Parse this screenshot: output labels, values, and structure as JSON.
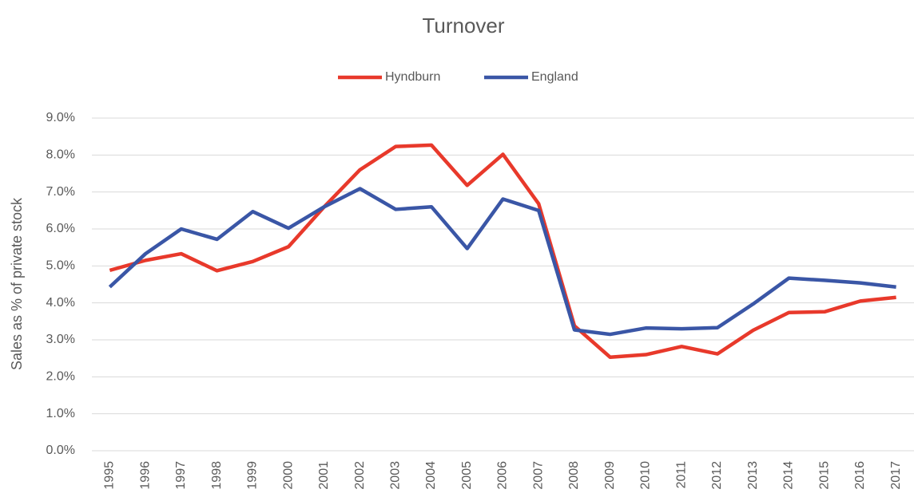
{
  "chart_data": {
    "type": "line",
    "title": "Turnover",
    "y_label": "Sales as % of private stock",
    "categories": [
      "1995",
      "1996",
      "1997",
      "1998",
      "1999",
      "2000",
      "2001",
      "2002",
      "2003",
      "2004",
      "2005",
      "2006",
      "2007",
      "2008",
      "2009",
      "2010",
      "2011",
      "2012",
      "2013",
      "2014",
      "2015",
      "2016",
      "2017"
    ],
    "series": [
      {
        "name": "Hyndburn",
        "color": "#e8392b",
        "values": [
          4.88,
          5.15,
          5.33,
          4.87,
          5.12,
          5.52,
          6.6,
          7.6,
          8.23,
          8.27,
          7.18,
          8.02,
          6.68,
          3.38,
          2.53,
          2.6,
          2.82,
          2.62,
          3.26,
          3.74,
          3.76,
          4.05,
          4.15
        ]
      },
      {
        "name": "England",
        "color": "#3a56a6",
        "values": [
          4.43,
          5.33,
          6.0,
          5.72,
          6.47,
          6.02,
          6.6,
          7.09,
          6.53,
          6.6,
          5.47,
          6.81,
          6.5,
          3.27,
          3.15,
          3.32,
          3.3,
          3.33,
          3.97,
          4.67,
          4.61,
          4.54,
          4.43
        ]
      }
    ],
    "ylim": [
      0,
      9
    ],
    "yticks": [
      {
        "value": 0,
        "label": "0.0%"
      },
      {
        "value": 1,
        "label": "1.0%"
      },
      {
        "value": 2,
        "label": "2.0%"
      },
      {
        "value": 3,
        "label": "3.0%"
      },
      {
        "value": 4,
        "label": "4.0%"
      },
      {
        "value": 5,
        "label": "5.0%"
      },
      {
        "value": 6,
        "label": "6.0%"
      },
      {
        "value": 7,
        "label": "7.0%"
      },
      {
        "value": 8,
        "label": "8.0%"
      },
      {
        "value": 9,
        "label": "9.0%"
      }
    ],
    "grid": true,
    "legend": "top"
  }
}
